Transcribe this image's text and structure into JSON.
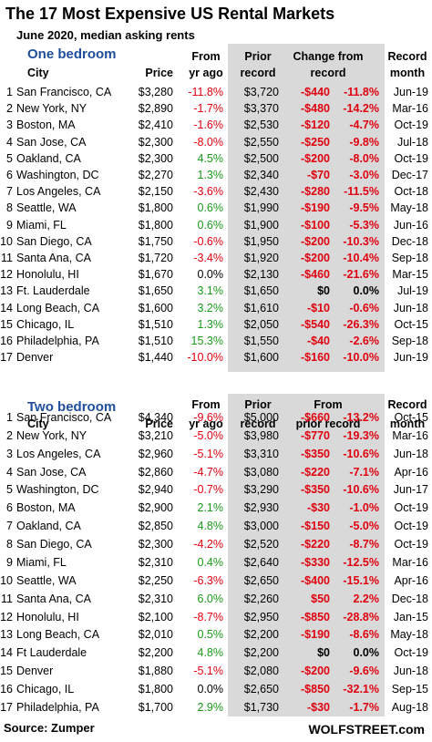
{
  "header": {
    "title": "The 17 Most Expensive US Rental Markets",
    "subtitle": "June 2020, median asking rents"
  },
  "sections": [
    {
      "label": "One bedroom",
      "columns": [
        [
          "City"
        ],
        [
          "Price"
        ],
        [
          "From",
          "yr ago"
        ],
        [
          "Prior",
          "record"
        ],
        [
          "Change from",
          "record"
        ],
        [
          "Record",
          "month"
        ]
      ],
      "rows": [
        [
          "1",
          "San Francisco, CA",
          "$3,280",
          "-11.8%",
          "$3,720",
          "-$440",
          "-11.8%",
          "Jun-19"
        ],
        [
          "2",
          "New York, NY",
          "$2,890",
          "-1.7%",
          "$3,370",
          "-$480",
          "-14.2%",
          "Mar-16"
        ],
        [
          "3",
          "Boston, MA",
          "$2,410",
          "-1.6%",
          "$2,530",
          "-$120",
          "-4.7%",
          "Oct-19"
        ],
        [
          "4",
          "San Jose, CA",
          "$2,300",
          "-8.0%",
          "$2,550",
          "-$250",
          "-9.8%",
          "Jul-18"
        ],
        [
          "5",
          "Oakland, CA",
          "$2,300",
          "4.5%",
          "$2,500",
          "-$200",
          "-8.0%",
          "Oct-19"
        ],
        [
          "6",
          "Washington, DC",
          "$2,270",
          "1.3%",
          "$2,340",
          "-$70",
          "-3.0%",
          "Dec-17"
        ],
        [
          "7",
          "Los Angeles, CA",
          "$2,150",
          "-3.6%",
          "$2,430",
          "-$280",
          "-11.5%",
          "Oct-18"
        ],
        [
          "8",
          "Seattle, WA",
          "$1,800",
          "0.6%",
          "$1,990",
          "-$190",
          "-9.5%",
          "May-18"
        ],
        [
          "9",
          "Miami, FL",
          "$1,800",
          "0.6%",
          "$1,900",
          "-$100",
          "-5.3%",
          "Jun-16"
        ],
        [
          "10",
          "San Diego, CA",
          "$1,750",
          "-0.6%",
          "$1,950",
          "-$200",
          "-10.3%",
          "Dec-18"
        ],
        [
          "11",
          "Santa Ana, CA",
          "$1,720",
          "-3.4%",
          "$1,920",
          "-$200",
          "-10.4%",
          "Sep-18"
        ],
        [
          "12",
          "Honolulu, HI",
          "$1,670",
          "0.0%",
          "$2,130",
          "-$460",
          "-21.6%",
          "Mar-15"
        ],
        [
          "13",
          "Ft. Lauderdale",
          "$1,650",
          "3.1%",
          "$1,650",
          "$0",
          "0.0%",
          "Jul-19"
        ],
        [
          "14",
          "Long Beach, CA",
          "$1,600",
          "3.2%",
          "$1,610",
          "-$10",
          "-0.6%",
          "Jun-18"
        ],
        [
          "15",
          "Chicago, IL",
          "$1,510",
          "1.3%",
          "$2,050",
          "-$540",
          "-26.3%",
          "Oct-15"
        ],
        [
          "16",
          "Philadelphia, PA",
          "$1,510",
          "15.3%",
          "$1,550",
          "-$40",
          "-2.6%",
          "Sep-18"
        ],
        [
          "17",
          "Denver",
          "$1,440",
          "-10.0%",
          "$1,600",
          "-$160",
          "-10.0%",
          "Jun-19"
        ]
      ]
    },
    {
      "label": "Two bedroom",
      "columns": [
        [
          "City"
        ],
        [
          "Price"
        ],
        [
          "From",
          "yr ago"
        ],
        [
          "Prior",
          "record"
        ],
        [
          "From",
          "prior record"
        ],
        [
          "Record",
          "month"
        ]
      ],
      "rows": [
        [
          "1",
          "San Francisco, CA",
          "$4,340",
          "-9.6%",
          "$5,000",
          "-$660",
          "-13.2%",
          "Oct-15"
        ],
        [
          "2",
          "New York, NY",
          "$3,210",
          "-5.0%",
          "$3,980",
          "-$770",
          "-19.3%",
          "Mar-16"
        ],
        [
          "3",
          "Los Angeles, CA",
          "$2,960",
          "-5.1%",
          "$3,310",
          "-$350",
          "-10.6%",
          "Jun-18"
        ],
        [
          "4",
          "San Jose, CA",
          "$2,860",
          "-4.7%",
          "$3,080",
          "-$220",
          "-7.1%",
          "Apr-16"
        ],
        [
          "5",
          "Washington, DC",
          "$2,940",
          "-0.7%",
          "$3,290",
          "-$350",
          "-10.6%",
          "Jun-17"
        ],
        [
          "6",
          "Boston, MA",
          "$2,900",
          "2.1%",
          "$2,930",
          "-$30",
          "-1.0%",
          "Oct-19"
        ],
        [
          "7",
          "Oakland, CA",
          "$2,850",
          "4.8%",
          "$3,000",
          "-$150",
          "-5.0%",
          "Oct-19"
        ],
        [
          "8",
          "San Diego, CA",
          "$2,300",
          "-4.2%",
          "$2,520",
          "-$220",
          "-8.7%",
          "Oct-19"
        ],
        [
          "9",
          "Miami, FL",
          "$2,310",
          "0.4%",
          "$2,640",
          "-$330",
          "-12.5%",
          "Mar-16"
        ],
        [
          "10",
          "Seattle, WA",
          "$2,250",
          "-6.3%",
          "$2,650",
          "-$400",
          "-15.1%",
          "Apr-16"
        ],
        [
          "11",
          "Santa Ana, CA",
          "$2,310",
          "6.0%",
          "$2,260",
          "$50",
          "2.2%",
          "Dec-18"
        ],
        [
          "12",
          "Honolulu, HI",
          "$2,100",
          "-8.7%",
          "$2,950",
          "-$850",
          "-28.8%",
          "Jan-15"
        ],
        [
          "13",
          "Long Beach, CA",
          "$2,010",
          "0.5%",
          "$2,200",
          "-$190",
          "-8.6%",
          "May-18"
        ],
        [
          "14",
          "Ft Lauderdale",
          "$2,200",
          "4.8%",
          "$2,200",
          "$0",
          "0.0%",
          "Oct-19"
        ],
        [
          "15",
          "Denver",
          "$1,880",
          "-5.1%",
          "$2,080",
          "-$200",
          "-9.6%",
          "Jun-18"
        ],
        [
          "16",
          "Chicago, IL",
          "$1,800",
          "0.0%",
          "$2,650",
          "-$850",
          "-32.1%",
          "Sep-15"
        ],
        [
          "17",
          "Philadelphia, PA",
          "$1,700",
          "2.9%",
          "$1,730",
          "-$30",
          "-1.7%",
          "Aug-18"
        ]
      ]
    }
  ],
  "footer": {
    "source": "Source: Zumper",
    "site": "WOLFSTREET.com"
  }
}
